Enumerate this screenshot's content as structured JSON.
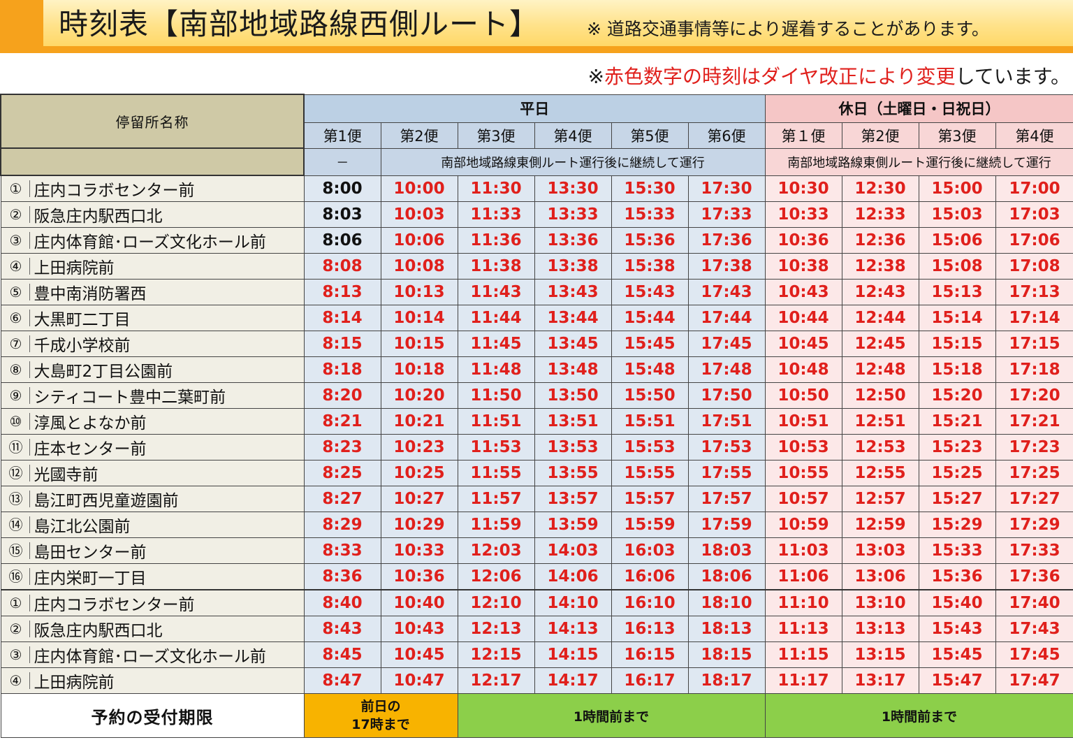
{
  "title": "時刻表【南部地域路線西側ルート】",
  "delay_note": "※ 道路交通事情等により遅着することがあります。",
  "revision_note": {
    "prefix": "※",
    "red": "赤色数字の時刻はダイヤ改正により変更",
    "suffix": "しています。"
  },
  "colors": {
    "accent_orange": "#f6a21c",
    "changed_time_red": "#e0201c",
    "weekday_blue": "#c7d6e7",
    "holiday_pink": "#f8d6d6",
    "reserve_green": "#8ccf4a",
    "reserve_orange": "#f8b300"
  },
  "table": {
    "stop_header": "停留所名称",
    "weekday": {
      "label": "平日",
      "trips": [
        "第1便",
        "第2便",
        "第3便",
        "第4便",
        "第5便",
        "第6便"
      ],
      "first_trip_note": "－",
      "continuation_note": "南部地域路線東側ルート運行後に継続して運行"
    },
    "holiday": {
      "label": "休日（土曜日・日祝日）",
      "trips": [
        "第１便",
        "第2便",
        "第3便",
        "第4便"
      ],
      "continuation_note": "南部地域路線東側ルート運行後に継続して運行"
    },
    "stops": [
      {
        "num": "①",
        "name": "庄内コラボセンター前",
        "times": [
          "8:00",
          "10:00",
          "11:30",
          "13:30",
          "15:30",
          "17:30",
          "10:30",
          "12:30",
          "15:00",
          "17:00"
        ]
      },
      {
        "num": "②",
        "name": "阪急庄内駅西口北",
        "times": [
          "8:03",
          "10:03",
          "11:33",
          "13:33",
          "15:33",
          "17:33",
          "10:33",
          "12:33",
          "15:03",
          "17:03"
        ]
      },
      {
        "num": "③",
        "name": "庄内体育館･ローズ文化ホール前",
        "times": [
          "8:06",
          "10:06",
          "11:36",
          "13:36",
          "15:36",
          "17:36",
          "10:36",
          "12:36",
          "15:06",
          "17:06"
        ]
      },
      {
        "num": "④",
        "name": "上田病院前",
        "times": [
          "8:08",
          "10:08",
          "11:38",
          "13:38",
          "15:38",
          "17:38",
          "10:38",
          "12:38",
          "15:08",
          "17:08"
        ]
      },
      {
        "num": "⑤",
        "name": "豊中南消防署西",
        "times": [
          "8:13",
          "10:13",
          "11:43",
          "13:43",
          "15:43",
          "17:43",
          "10:43",
          "12:43",
          "15:13",
          "17:13"
        ]
      },
      {
        "num": "⑥",
        "name": "大黒町二丁目",
        "times": [
          "8:14",
          "10:14",
          "11:44",
          "13:44",
          "15:44",
          "17:44",
          "10:44",
          "12:44",
          "15:14",
          "17:14"
        ]
      },
      {
        "num": "⑦",
        "name": "千成小学校前",
        "times": [
          "8:15",
          "10:15",
          "11:45",
          "13:45",
          "15:45",
          "17:45",
          "10:45",
          "12:45",
          "15:15",
          "17:15"
        ]
      },
      {
        "num": "⑧",
        "name": "大島町2丁目公園前",
        "times": [
          "8:18",
          "10:18",
          "11:48",
          "13:48",
          "15:48",
          "17:48",
          "10:48",
          "12:48",
          "15:18",
          "17:18"
        ]
      },
      {
        "num": "⑨",
        "name": "シティコート豊中二葉町前",
        "times": [
          "8:20",
          "10:20",
          "11:50",
          "13:50",
          "15:50",
          "17:50",
          "10:50",
          "12:50",
          "15:20",
          "17:20"
        ]
      },
      {
        "num": "⑩",
        "name": "淳風とよなか前",
        "times": [
          "8:21",
          "10:21",
          "11:51",
          "13:51",
          "15:51",
          "17:51",
          "10:51",
          "12:51",
          "15:21",
          "17:21"
        ]
      },
      {
        "num": "⑪",
        "name": "庄本センター前",
        "times": [
          "8:23",
          "10:23",
          "11:53",
          "13:53",
          "15:53",
          "17:53",
          "10:53",
          "12:53",
          "15:23",
          "17:23"
        ]
      },
      {
        "num": "⑫",
        "name": "光國寺前",
        "times": [
          "8:25",
          "10:25",
          "11:55",
          "13:55",
          "15:55",
          "17:55",
          "10:55",
          "12:55",
          "15:25",
          "17:25"
        ]
      },
      {
        "num": "⑬",
        "name": "島江町西児童遊園前",
        "times": [
          "8:27",
          "10:27",
          "11:57",
          "13:57",
          "15:57",
          "17:57",
          "10:57",
          "12:57",
          "15:27",
          "17:27"
        ]
      },
      {
        "num": "⑭",
        "name": "島江北公園前",
        "times": [
          "8:29",
          "10:29",
          "11:59",
          "13:59",
          "15:59",
          "17:59",
          "10:59",
          "12:59",
          "15:29",
          "17:29"
        ]
      },
      {
        "num": "⑮",
        "name": "島田センター前",
        "times": [
          "8:33",
          "10:33",
          "12:03",
          "14:03",
          "16:03",
          "18:03",
          "11:03",
          "13:03",
          "15:33",
          "17:33"
        ]
      },
      {
        "num": "⑯",
        "name": "庄内栄町一丁目",
        "times": [
          "8:36",
          "10:36",
          "12:06",
          "14:06",
          "16:06",
          "18:06",
          "11:06",
          "13:06",
          "15:36",
          "17:36"
        ]
      },
      {
        "num": "①",
        "name": "庄内コラボセンター前",
        "times": [
          "8:40",
          "10:40",
          "12:10",
          "14:10",
          "16:10",
          "18:10",
          "11:10",
          "13:10",
          "15:40",
          "17:40"
        ]
      },
      {
        "num": "②",
        "name": "阪急庄内駅西口北",
        "times": [
          "8:43",
          "10:43",
          "12:13",
          "14:13",
          "16:13",
          "18:13",
          "11:13",
          "13:13",
          "15:43",
          "17:43"
        ]
      },
      {
        "num": "③",
        "name": "庄内体育館･ローズ文化ホール前",
        "times": [
          "8:45",
          "10:45",
          "12:15",
          "14:15",
          "16:15",
          "18:15",
          "11:15",
          "13:15",
          "15:45",
          "17:45"
        ]
      },
      {
        "num": "④",
        "name": "上田病院前",
        "times": [
          "8:47",
          "10:47",
          "12:17",
          "14:17",
          "16:17",
          "18:17",
          "11:17",
          "13:17",
          "15:47",
          "17:47"
        ]
      }
    ],
    "unchanged_times": [
      "8:00",
      "8:03",
      "8:06"
    ],
    "reservation": {
      "label": "予約の受付期限",
      "weekday_first": "前日の\n17時まで",
      "weekday_rest": "1時間前まで",
      "holiday": "1時間前まで"
    }
  }
}
